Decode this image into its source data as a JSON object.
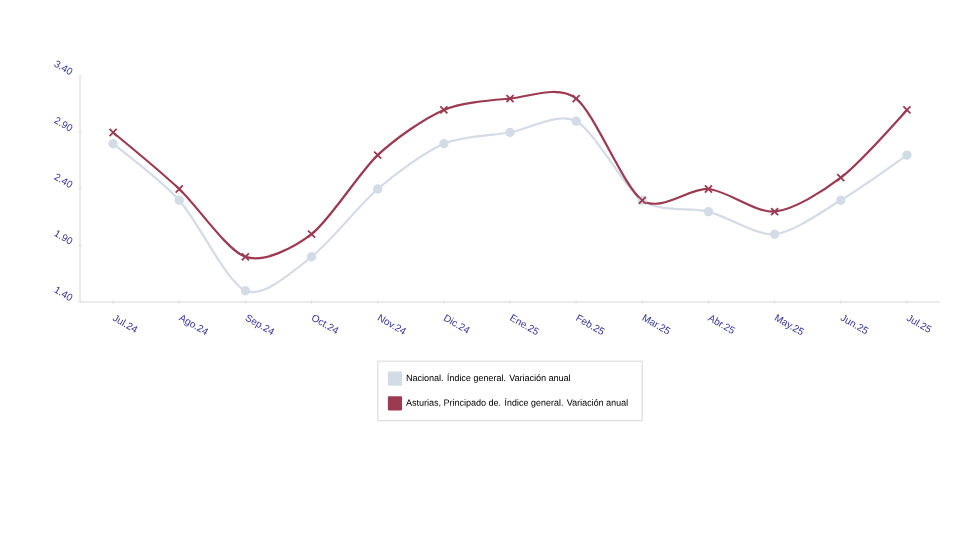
{
  "chart_data": {
    "type": "line",
    "categories": [
      "Jul.24",
      "Ago.24",
      "Sep.24",
      "Oct.24",
      "Nov.24",
      "Dic.24",
      "Ene.25",
      "Feb.25",
      "Mar.25",
      "Abr.25",
      "May.25",
      "Jun.25",
      "Jul.25"
    ],
    "series": [
      {
        "name": "Nacional. Índice general. Variación anual",
        "color": "#d3dce6",
        "marker": "circle",
        "values": [
          2.8,
          2.3,
          1.5,
          1.8,
          2.4,
          2.8,
          2.9,
          3.0,
          2.3,
          2.2,
          2.0,
          2.3,
          2.7
        ]
      },
      {
        "name": "Asturias, Principado de. Índice general. Variación anual",
        "color": "#9b3a50",
        "marker": "cross",
        "values": [
          2.9,
          2.4,
          1.8,
          2.0,
          2.7,
          3.1,
          3.2,
          3.2,
          2.3,
          2.4,
          2.2,
          2.5,
          3.1
        ]
      }
    ],
    "ylim": [
      1.4,
      3.4
    ],
    "yticks": [
      {
        "value": 1.4,
        "label": "1.40"
      },
      {
        "value": 1.9,
        "label": "1.90"
      },
      {
        "value": 2.4,
        "label": "2.40"
      },
      {
        "value": 2.9,
        "label": "2.90"
      },
      {
        "value": 3.4,
        "label": "3.40"
      }
    ],
    "grid": false,
    "legend": "bottom"
  }
}
